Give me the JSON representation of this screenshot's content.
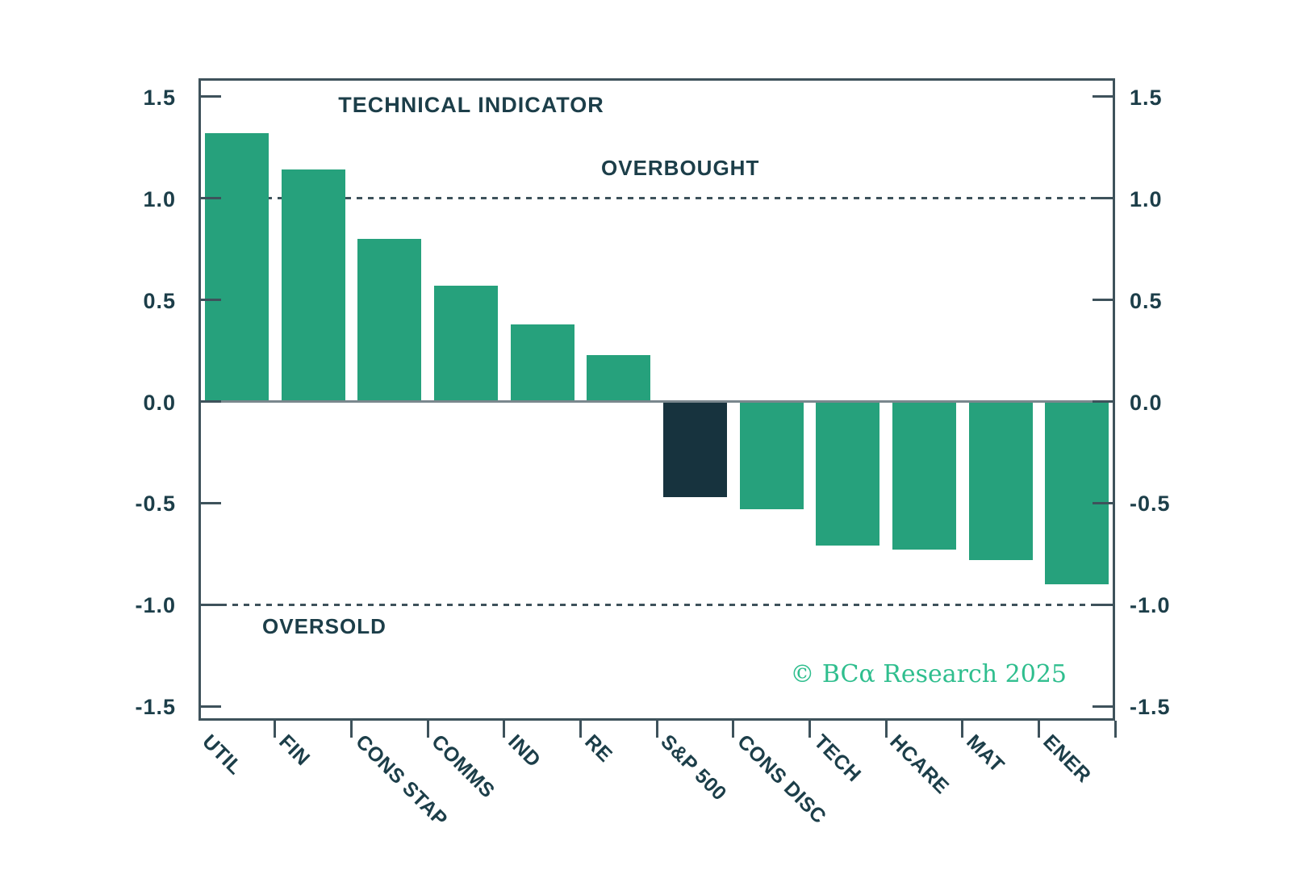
{
  "page": {
    "background": "#ffffff"
  },
  "chart_data": {
    "type": "bar",
    "title": "TECHNICAL INDICATOR",
    "categories": [
      "UTIL",
      "FIN",
      "CONS STAP",
      "COMMS",
      "IND",
      "RE",
      "S&P 500",
      "CONS DISC",
      "TECH",
      "HCARE",
      "MAT",
      "ENER"
    ],
    "values": [
      1.32,
      1.14,
      0.8,
      0.57,
      0.38,
      0.23,
      -0.47,
      -0.53,
      -0.71,
      -0.73,
      -0.78,
      -0.9
    ],
    "highlight_category": "S&P 500",
    "xlabel": "",
    "ylabel": "",
    "ylim": [
      -1.57,
      1.59
    ],
    "yticks": [
      1.5,
      1.0,
      0.5,
      0.0,
      -0.5,
      -1.0,
      -1.5
    ],
    "ytick_labels": [
      "1.5",
      "1.0",
      "0.5",
      "0.0",
      "-0.5",
      "-1.0",
      "-1.5"
    ],
    "dual_y_axis": true,
    "grid": false,
    "legend": "none",
    "reference_lines": [
      {
        "value": 1.0,
        "label": "OVERBOUGHT",
        "style": "dashed"
      },
      {
        "value": -1.0,
        "label": "OVERSOLD",
        "style": "dashed"
      }
    ],
    "annotations": {
      "overbought": "OVERBOUGHT",
      "oversold": "OVERSOLD"
    },
    "watermark": "© BCα Research 2025",
    "colors": {
      "bar": "#26A17C",
      "highlight_bar": "#17333E",
      "axis": "#3E525B",
      "zero_line": "#7A878D",
      "text": "#1C3E49",
      "watermark": "#2FBE8E"
    }
  }
}
